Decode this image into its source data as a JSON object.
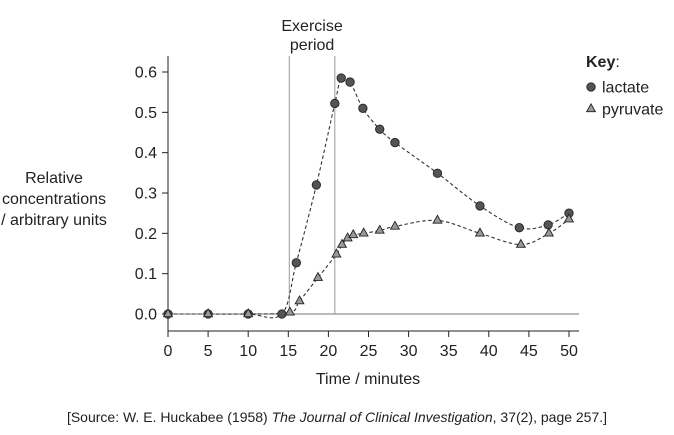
{
  "chart_data": {
    "type": "line",
    "title": "",
    "xlabel": "Time / minutes",
    "ylabel_lines": [
      "Relative",
      "concentrations",
      "/ arbitrary units"
    ],
    "xlim": [
      0,
      50
    ],
    "ylim": [
      0,
      0.6
    ],
    "x_ticks": [
      0,
      5,
      10,
      15,
      20,
      25,
      30,
      35,
      40,
      45,
      50
    ],
    "y_ticks": [
      "0.0",
      "0.1",
      "0.2",
      "0.3",
      "0.4",
      "0.5",
      "0.6"
    ],
    "grid": false,
    "exercise_period": {
      "label_lines": [
        "Exercise",
        "period"
      ],
      "start": 15,
      "end": 20.8
    },
    "legend": {
      "title": "Key",
      "title_suffix": ":",
      "placement": "top-right"
    },
    "series": [
      {
        "name": "lactate",
        "marker": "circle",
        "color": "#555555",
        "points": [
          [
            0,
            0.0
          ],
          [
            5,
            0.0
          ],
          [
            10,
            0.0
          ],
          [
            14.2,
            0.0
          ],
          [
            16.0,
            0.127
          ],
          [
            18.5,
            0.32
          ],
          [
            20.8,
            0.522
          ],
          [
            21.6,
            0.585
          ],
          [
            22.7,
            0.575
          ],
          [
            24.3,
            0.51
          ],
          [
            26.4,
            0.458
          ],
          [
            28.3,
            0.425
          ],
          [
            33.6,
            0.349
          ],
          [
            38.9,
            0.268
          ],
          [
            43.8,
            0.214
          ],
          [
            47.4,
            0.221
          ],
          [
            50,
            0.25
          ]
        ]
      },
      {
        "name": "pyruvate",
        "marker": "triangle",
        "color": "#999999",
        "points": [
          [
            0,
            0.0
          ],
          [
            5,
            0.0
          ],
          [
            10,
            0.0
          ],
          [
            15.2,
            0.004
          ],
          [
            16.4,
            0.032
          ],
          [
            18.7,
            0.09
          ],
          [
            21.0,
            0.148
          ],
          [
            21.7,
            0.172
          ],
          [
            22.4,
            0.188
          ],
          [
            23.1,
            0.196
          ],
          [
            24.4,
            0.2
          ],
          [
            26.4,
            0.207
          ],
          [
            28.3,
            0.217
          ],
          [
            33.6,
            0.232
          ],
          [
            38.9,
            0.2
          ],
          [
            44.0,
            0.172
          ],
          [
            47.5,
            0.2
          ],
          [
            50,
            0.235
          ]
        ]
      }
    ]
  },
  "source": {
    "prefix": "[Source: W. E. Huckabee (1958) ",
    "journal": "The Journal of Clinical Investigation",
    "suffix": ", 37(2), page 257.]"
  }
}
